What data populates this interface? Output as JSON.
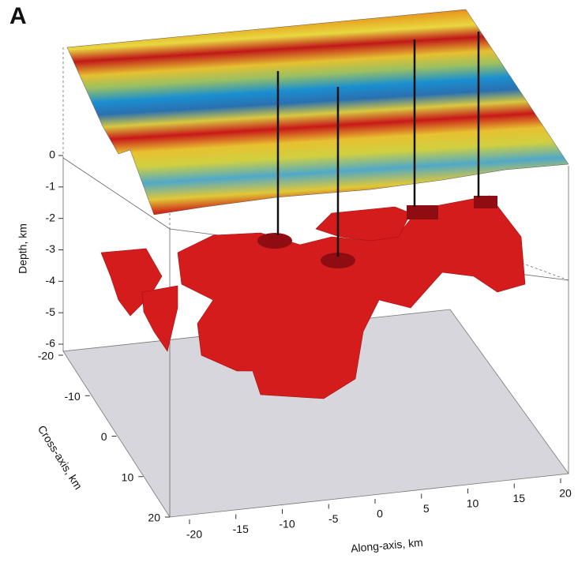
{
  "panel_label": "A",
  "axes": {
    "depth": {
      "label": "Depth, km",
      "ticks": [
        0,
        -1,
        -2,
        -3,
        -4,
        -5,
        -6
      ]
    },
    "cross_axis": {
      "label": "Cross-axis, km",
      "ticks": [
        -20,
        -10,
        0,
        10,
        20
      ]
    },
    "along_axis": {
      "label": "Along-axis, km",
      "ticks": [
        -20,
        -15,
        -10,
        -5,
        0,
        5,
        10,
        15,
        20
      ]
    }
  }
}
